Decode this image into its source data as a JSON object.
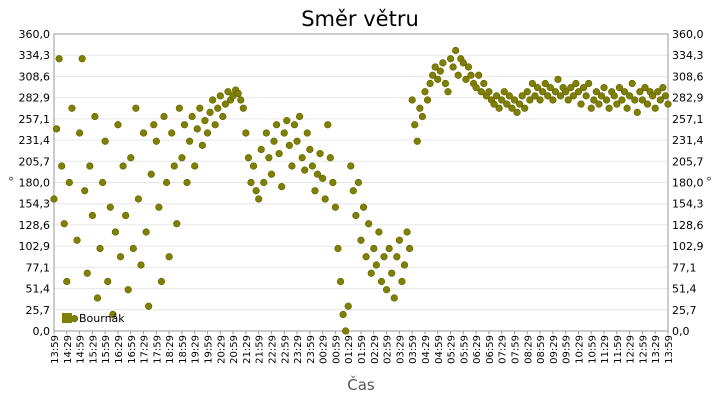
{
  "chart_data": {
    "type": "scatter",
    "title": "Směr větru",
    "xlabel": "Čas",
    "ylabel": "°",
    "ylim": [
      0,
      360
    ],
    "yticks": [
      "0,0",
      "25,7",
      "51,4",
      "77,1",
      "102,9",
      "128,6",
      "154,3",
      "180,0",
      "205,7",
      "231,4",
      "257,1",
      "282,9",
      "308,6",
      "334,3",
      "360,0"
    ],
    "xticks": [
      "13:59",
      "14:29",
      "14:59",
      "15:29",
      "15:59",
      "16:29",
      "16:59",
      "17:29",
      "17:59",
      "18:29",
      "18:59",
      "19:29",
      "19:59",
      "20:29",
      "20:59",
      "21:29",
      "21:59",
      "22:29",
      "22:59",
      "23:29",
      "23:59",
      "00:29",
      "00:59",
      "01:29",
      "01:59",
      "02:29",
      "02:59",
      "03:29",
      "03:59",
      "04:29",
      "04:59",
      "05:29",
      "05:59",
      "06:29",
      "06:59",
      "07:29",
      "07:59",
      "08:29",
      "08:59",
      "09:29",
      "09:59",
      "10:29",
      "10:59",
      "11:29",
      "11:59",
      "12:29",
      "12:59",
      "13:29",
      "13:59"
    ],
    "grid": true,
    "legend_position": "bottom-left",
    "series": [
      {
        "name": "Bournák",
        "color": "#808000",
        "points": [
          [
            0.0,
            160
          ],
          [
            0.1,
            245
          ],
          [
            0.2,
            330
          ],
          [
            0.3,
            200
          ],
          [
            0.4,
            130
          ],
          [
            0.5,
            60
          ],
          [
            0.6,
            180
          ],
          [
            0.7,
            270
          ],
          [
            0.8,
            15
          ],
          [
            0.9,
            110
          ],
          [
            1.0,
            240
          ],
          [
            1.1,
            330
          ],
          [
            1.2,
            170
          ],
          [
            1.3,
            70
          ],
          [
            1.4,
            200
          ],
          [
            1.5,
            140
          ],
          [
            1.6,
            260
          ],
          [
            1.7,
            40
          ],
          [
            1.8,
            100
          ],
          [
            1.9,
            180
          ],
          [
            2.0,
            230
          ],
          [
            2.1,
            60
          ],
          [
            2.2,
            150
          ],
          [
            2.3,
            20
          ],
          [
            2.4,
            120
          ],
          [
            2.5,
            250
          ],
          [
            2.6,
            90
          ],
          [
            2.7,
            200
          ],
          [
            2.8,
            140
          ],
          [
            2.9,
            50
          ],
          [
            3.0,
            210
          ],
          [
            3.1,
            100
          ],
          [
            3.2,
            270
          ],
          [
            3.3,
            160
          ],
          [
            3.4,
            80
          ],
          [
            3.5,
            240
          ],
          [
            3.6,
            120
          ],
          [
            3.7,
            30
          ],
          [
            3.8,
            190
          ],
          [
            3.9,
            250
          ],
          [
            4.0,
            230
          ],
          [
            4.1,
            150
          ],
          [
            4.2,
            60
          ],
          [
            4.3,
            260
          ],
          [
            4.4,
            180
          ],
          [
            4.5,
            90
          ],
          [
            4.6,
            240
          ],
          [
            4.7,
            200
          ],
          [
            4.8,
            130
          ],
          [
            4.9,
            270
          ],
          [
            5.0,
            210
          ],
          [
            5.1,
            250
          ],
          [
            5.2,
            180
          ],
          [
            5.3,
            230
          ],
          [
            5.4,
            260
          ],
          [
            5.5,
            200
          ],
          [
            5.6,
            245
          ],
          [
            5.7,
            270
          ],
          [
            5.8,
            225
          ],
          [
            5.9,
            255
          ],
          [
            6.0,
            240
          ],
          [
            6.1,
            265
          ],
          [
            6.2,
            280
          ],
          [
            6.3,
            250
          ],
          [
            6.4,
            270
          ],
          [
            6.5,
            285
          ],
          [
            6.6,
            260
          ],
          [
            6.7,
            275
          ],
          [
            6.8,
            290
          ],
          [
            6.9,
            280
          ],
          [
            7.0,
            285
          ],
          [
            7.1,
            292
          ],
          [
            7.2,
            288
          ],
          [
            7.3,
            280
          ],
          [
            7.4,
            270
          ],
          [
            7.5,
            240
          ],
          [
            7.6,
            210
          ],
          [
            7.7,
            180
          ],
          [
            7.8,
            200
          ],
          [
            7.9,
            170
          ],
          [
            8.0,
            160
          ],
          [
            8.1,
            220
          ],
          [
            8.2,
            180
          ],
          [
            8.3,
            240
          ],
          [
            8.4,
            210
          ],
          [
            8.5,
            190
          ],
          [
            8.6,
            230
          ],
          [
            8.7,
            250
          ],
          [
            8.8,
            215
          ],
          [
            8.9,
            175
          ],
          [
            9.0,
            240
          ],
          [
            9.1,
            255
          ],
          [
            9.2,
            225
          ],
          [
            9.3,
            200
          ],
          [
            9.4,
            250
          ],
          [
            9.5,
            230
          ],
          [
            9.6,
            260
          ],
          [
            9.7,
            210
          ],
          [
            9.8,
            195
          ],
          [
            9.9,
            240
          ],
          [
            10.0,
            220
          ],
          [
            10.1,
            200
          ],
          [
            10.2,
            170
          ],
          [
            10.3,
            190
          ],
          [
            10.4,
            215
          ],
          [
            10.5,
            185
          ],
          [
            10.6,
            160
          ],
          [
            10.7,
            250
          ],
          [
            10.8,
            210
          ],
          [
            10.9,
            180
          ],
          [
            11.0,
            150
          ],
          [
            11.1,
            100
          ],
          [
            11.2,
            60
          ],
          [
            11.3,
            20
          ],
          [
            11.4,
            0
          ],
          [
            11.5,
            30
          ],
          [
            11.6,
            200
          ],
          [
            11.7,
            170
          ],
          [
            11.8,
            140
          ],
          [
            11.9,
            180
          ],
          [
            12.0,
            110
          ],
          [
            12.1,
            150
          ],
          [
            12.2,
            90
          ],
          [
            12.3,
            130
          ],
          [
            12.4,
            70
          ],
          [
            12.5,
            100
          ],
          [
            12.6,
            80
          ],
          [
            12.7,
            120
          ],
          [
            12.8,
            60
          ],
          [
            12.9,
            90
          ],
          [
            13.0,
            50
          ],
          [
            13.1,
            100
          ],
          [
            13.2,
            70
          ],
          [
            13.3,
            40
          ],
          [
            13.4,
            90
          ],
          [
            13.5,
            110
          ],
          [
            13.6,
            60
          ],
          [
            13.7,
            80
          ],
          [
            13.8,
            120
          ],
          [
            13.9,
            100
          ],
          [
            14.0,
            280
          ],
          [
            14.1,
            250
          ],
          [
            14.2,
            230
          ],
          [
            14.3,
            270
          ],
          [
            14.4,
            260
          ],
          [
            14.5,
            290
          ],
          [
            14.6,
            280
          ],
          [
            14.7,
            300
          ],
          [
            14.8,
            310
          ],
          [
            14.9,
            320
          ],
          [
            15.0,
            305
          ],
          [
            15.1,
            315
          ],
          [
            15.2,
            325
          ],
          [
            15.3,
            300
          ],
          [
            15.4,
            290
          ],
          [
            15.5,
            330
          ],
          [
            15.6,
            320
          ],
          [
            15.7,
            340
          ],
          [
            15.8,
            310
          ],
          [
            15.9,
            330
          ],
          [
            16.0,
            325
          ],
          [
            16.1,
            305
          ],
          [
            16.2,
            320
          ],
          [
            16.3,
            310
          ],
          [
            16.4,
            300
          ],
          [
            16.5,
            295
          ],
          [
            16.6,
            310
          ],
          [
            16.7,
            290
          ],
          [
            16.8,
            300
          ],
          [
            16.9,
            285
          ],
          [
            17.0,
            290
          ],
          [
            17.1,
            280
          ],
          [
            17.2,
            275
          ],
          [
            17.3,
            285
          ],
          [
            17.4,
            270
          ],
          [
            17.5,
            280
          ],
          [
            17.6,
            290
          ],
          [
            17.7,
            275
          ],
          [
            17.8,
            285
          ],
          [
            17.9,
            270
          ],
          [
            18.0,
            280
          ],
          [
            18.1,
            265
          ],
          [
            18.2,
            275
          ],
          [
            18.3,
            285
          ],
          [
            18.4,
            270
          ],
          [
            18.5,
            290
          ],
          [
            18.6,
            280
          ],
          [
            18.7,
            300
          ],
          [
            18.8,
            285
          ],
          [
            18.9,
            295
          ],
          [
            19.0,
            280
          ],
          [
            19.1,
            290
          ],
          [
            19.2,
            300
          ],
          [
            19.3,
            285
          ],
          [
            19.4,
            295
          ],
          [
            19.5,
            280
          ],
          [
            19.6,
            290
          ],
          [
            19.7,
            305
          ],
          [
            19.8,
            285
          ],
          [
            19.9,
            295
          ],
          [
            20.0,
            290
          ],
          [
            20.1,
            280
          ],
          [
            20.2,
            295
          ],
          [
            20.3,
            285
          ],
          [
            20.4,
            300
          ],
          [
            20.5,
            290
          ],
          [
            20.6,
            275
          ],
          [
            20.7,
            295
          ],
          [
            20.8,
            285
          ],
          [
            20.9,
            300
          ],
          [
            21.0,
            270
          ],
          [
            21.1,
            280
          ],
          [
            21.2,
            290
          ],
          [
            21.3,
            275
          ],
          [
            21.4,
            285
          ],
          [
            21.5,
            295
          ],
          [
            21.6,
            280
          ],
          [
            21.7,
            270
          ],
          [
            21.8,
            290
          ],
          [
            21.9,
            285
          ],
          [
            22.0,
            275
          ],
          [
            22.1,
            295
          ],
          [
            22.2,
            280
          ],
          [
            22.3,
            290
          ],
          [
            22.4,
            270
          ],
          [
            22.5,
            285
          ],
          [
            22.6,
            300
          ],
          [
            22.7,
            280
          ],
          [
            22.8,
            265
          ],
          [
            22.9,
            290
          ],
          [
            23.0,
            280
          ],
          [
            23.1,
            295
          ],
          [
            23.2,
            275
          ],
          [
            23.3,
            290
          ],
          [
            23.4,
            285
          ],
          [
            23.5,
            270
          ],
          [
            23.6,
            290
          ],
          [
            23.7,
            280
          ],
          [
            23.8,
            295
          ],
          [
            23.9,
            285
          ],
          [
            24.0,
            275
          ]
        ]
      }
    ]
  }
}
